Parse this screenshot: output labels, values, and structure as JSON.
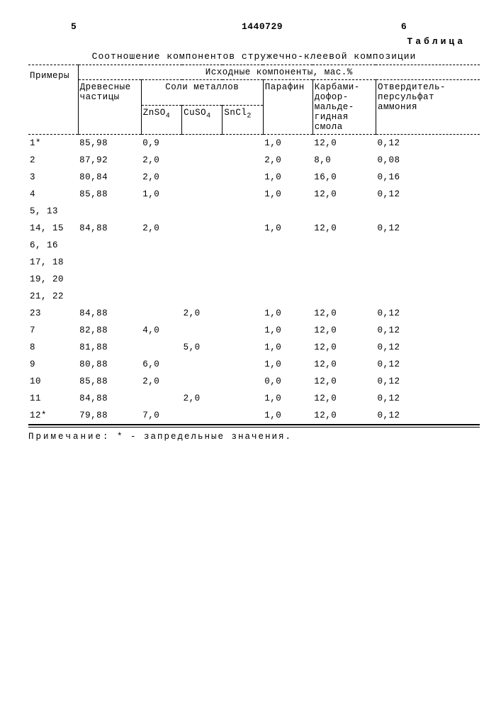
{
  "header": {
    "left_num": "5",
    "patent_no": "1440729",
    "right_num": "6",
    "table_word": "Таблица"
  },
  "caption": "Соотношение компонентов стружечно-клеевой композиции",
  "columns": {
    "c1": "Примеры",
    "group_top": "Исходные  компоненты,  мас.%",
    "c2": "Древесные частицы",
    "group_salts": "Соли металлов",
    "c3": "ZnSO",
    "c3s": "4",
    "c4": "CuSO",
    "c4s": "4",
    "c5": "SnCl",
    "c5s": "2",
    "c6": "Парафин",
    "c7": "Карбами-дофор-мальде-гидная смола",
    "c8": "Отвердитель-персульфат аммония"
  },
  "rows": [
    {
      "ex": "1*",
      "wood": "85,98",
      "zn": "0,9",
      "cu": "",
      "sn": "",
      "par": "1,0",
      "res": "12,0",
      "hard": "0,12"
    },
    {
      "ex": "2",
      "wood": "87,92",
      "zn": "2,0",
      "cu": "",
      "sn": "",
      "par": "2,0",
      "res": "8,0",
      "hard": "0,08"
    },
    {
      "ex": "3",
      "wood": "80,84",
      "zn": "2,0",
      "cu": "",
      "sn": "",
      "par": "1,0",
      "res": "16,0",
      "hard": "0,16"
    },
    {
      "ex": "4",
      "wood": "85,88",
      "zn": "1,0",
      "cu": "",
      "sn": "",
      "par": "1,0",
      "res": "12,0",
      "hard": "0,12"
    },
    {
      "ex": "5, 13",
      "wood": "",
      "zn": "",
      "cu": "",
      "sn": "",
      "par": "",
      "res": "",
      "hard": ""
    },
    {
      "ex": "14, 15",
      "wood": "84,88",
      "zn": "2,0",
      "cu": "",
      "sn": "",
      "par": "1,0",
      "res": "12,0",
      "hard": "0,12"
    },
    {
      "ex": "6, 16",
      "wood": "",
      "zn": "",
      "cu": "",
      "sn": "",
      "par": "",
      "res": "",
      "hard": ""
    },
    {
      "ex": "17, 18",
      "wood": "",
      "zn": "",
      "cu": "",
      "sn": "",
      "par": "",
      "res": "",
      "hard": ""
    },
    {
      "ex": "19, 20",
      "wood": "",
      "zn": "",
      "cu": "",
      "sn": "",
      "par": "",
      "res": "",
      "hard": ""
    },
    {
      "ex": "21, 22",
      "wood": "",
      "zn": "",
      "cu": "",
      "sn": "",
      "par": "",
      "res": "",
      "hard": ""
    },
    {
      "ex": "23",
      "wood": "84,88",
      "zn": "",
      "cu": "2,0",
      "sn": "",
      "par": "1,0",
      "res": "12,0",
      "hard": "0,12"
    },
    {
      "ex": "7",
      "wood": "82,88",
      "zn": "4,0",
      "cu": "",
      "sn": "",
      "par": "1,0",
      "res": "12,0",
      "hard": "0,12"
    },
    {
      "ex": "8",
      "wood": "81,88",
      "zn": "",
      "cu": "5,0",
      "sn": "",
      "par": "1,0",
      "res": "12,0",
      "hard": "0,12"
    },
    {
      "ex": "9",
      "wood": "80,88",
      "zn": "6,0",
      "cu": "",
      "sn": "",
      "par": "1,0",
      "res": "12,0",
      "hard": "0,12"
    },
    {
      "ex": "10",
      "wood": "85,88",
      "zn": "2,0",
      "cu": "",
      "sn": "",
      "par": "0,0",
      "res": "12,0",
      "hard": "0,12"
    },
    {
      "ex": "11",
      "wood": "84,88",
      "zn": "",
      "cu": "2,0",
      "sn": "",
      "par": "1,0",
      "res": "12,0",
      "hard": "0,12"
    },
    {
      "ex": "12*",
      "wood": "79,88",
      "zn": "7,0",
      "cu": "",
      "sn": "",
      "par": "1,0",
      "res": "12,0",
      "hard": "0,12"
    }
  ],
  "footnote_label": "Примечание:",
  "footnote_text": " * - запредельные значения.",
  "colors": {
    "bg": "#ffffff",
    "fg": "#000000"
  }
}
